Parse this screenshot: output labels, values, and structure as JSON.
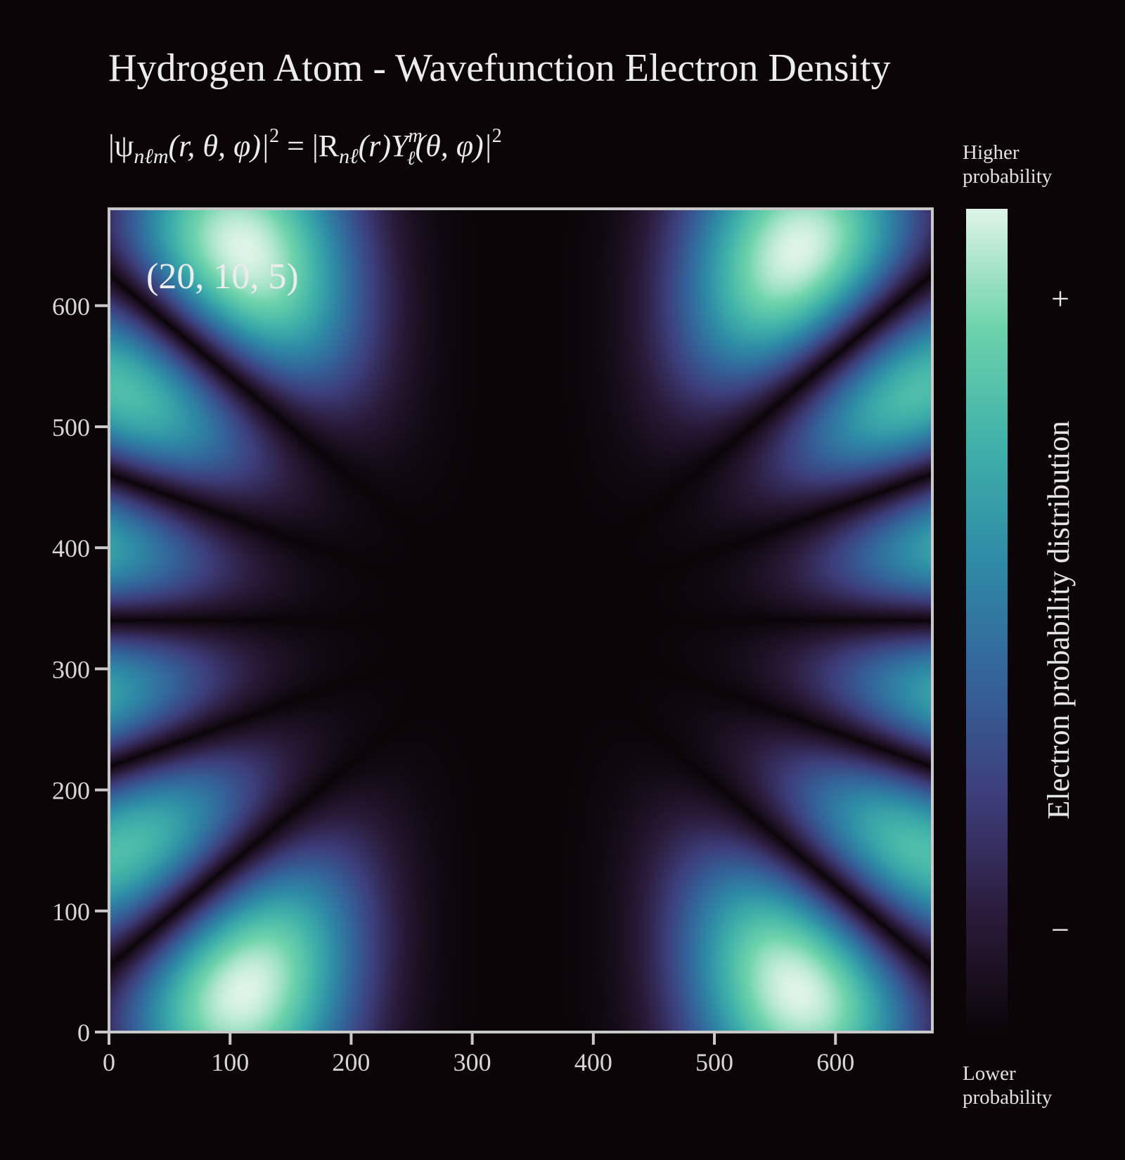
{
  "chart_data": {
    "type": "heatmap",
    "title": "Hydrogen Atom - Wavefunction Electron Density",
    "formula": {
      "prefix": "|ψ",
      "psi_sub": "nℓm",
      "args": "(r, θ, φ)|",
      "exp1": "2",
      "eq": " = |R",
      "r_sub": "nℓ",
      "r_args": "(r)Y",
      "y_sup": "m",
      "y_sub": "ℓ",
      "y_args": "(θ, φ)|",
      "exp2": "2"
    },
    "state_label": "(20, 10, 5)",
    "quantum_numbers": {
      "n": 20,
      "l": 10,
      "m": 5
    },
    "x_ticks": [
      "0",
      "100",
      "200",
      "300",
      "400",
      "500",
      "600"
    ],
    "y_ticks": [
      "0",
      "100",
      "200",
      "300",
      "400",
      "500",
      "600"
    ],
    "xlim": [
      0,
      680
    ],
    "ylim": [
      0,
      680
    ],
    "grid": false,
    "colorbar": {
      "label": "Electron probability distribution",
      "top_label_line1": "Higher",
      "top_label_line2": "probability",
      "bottom_label_line1": "Lower",
      "bottom_label_line2": "probability",
      "plus": "+",
      "minus": "−",
      "colormap": "mako",
      "stops": [
        "#0b0508",
        "#2a1b3a",
        "#3d3d7a",
        "#34639a",
        "#2e8aa6",
        "#3fb1a9",
        "#6dd3ab",
        "#dff4e8"
      ]
    },
    "colors": {
      "background": "#0b0508",
      "axes": "#c8c8c8",
      "text": "#e6e6e6"
    }
  }
}
